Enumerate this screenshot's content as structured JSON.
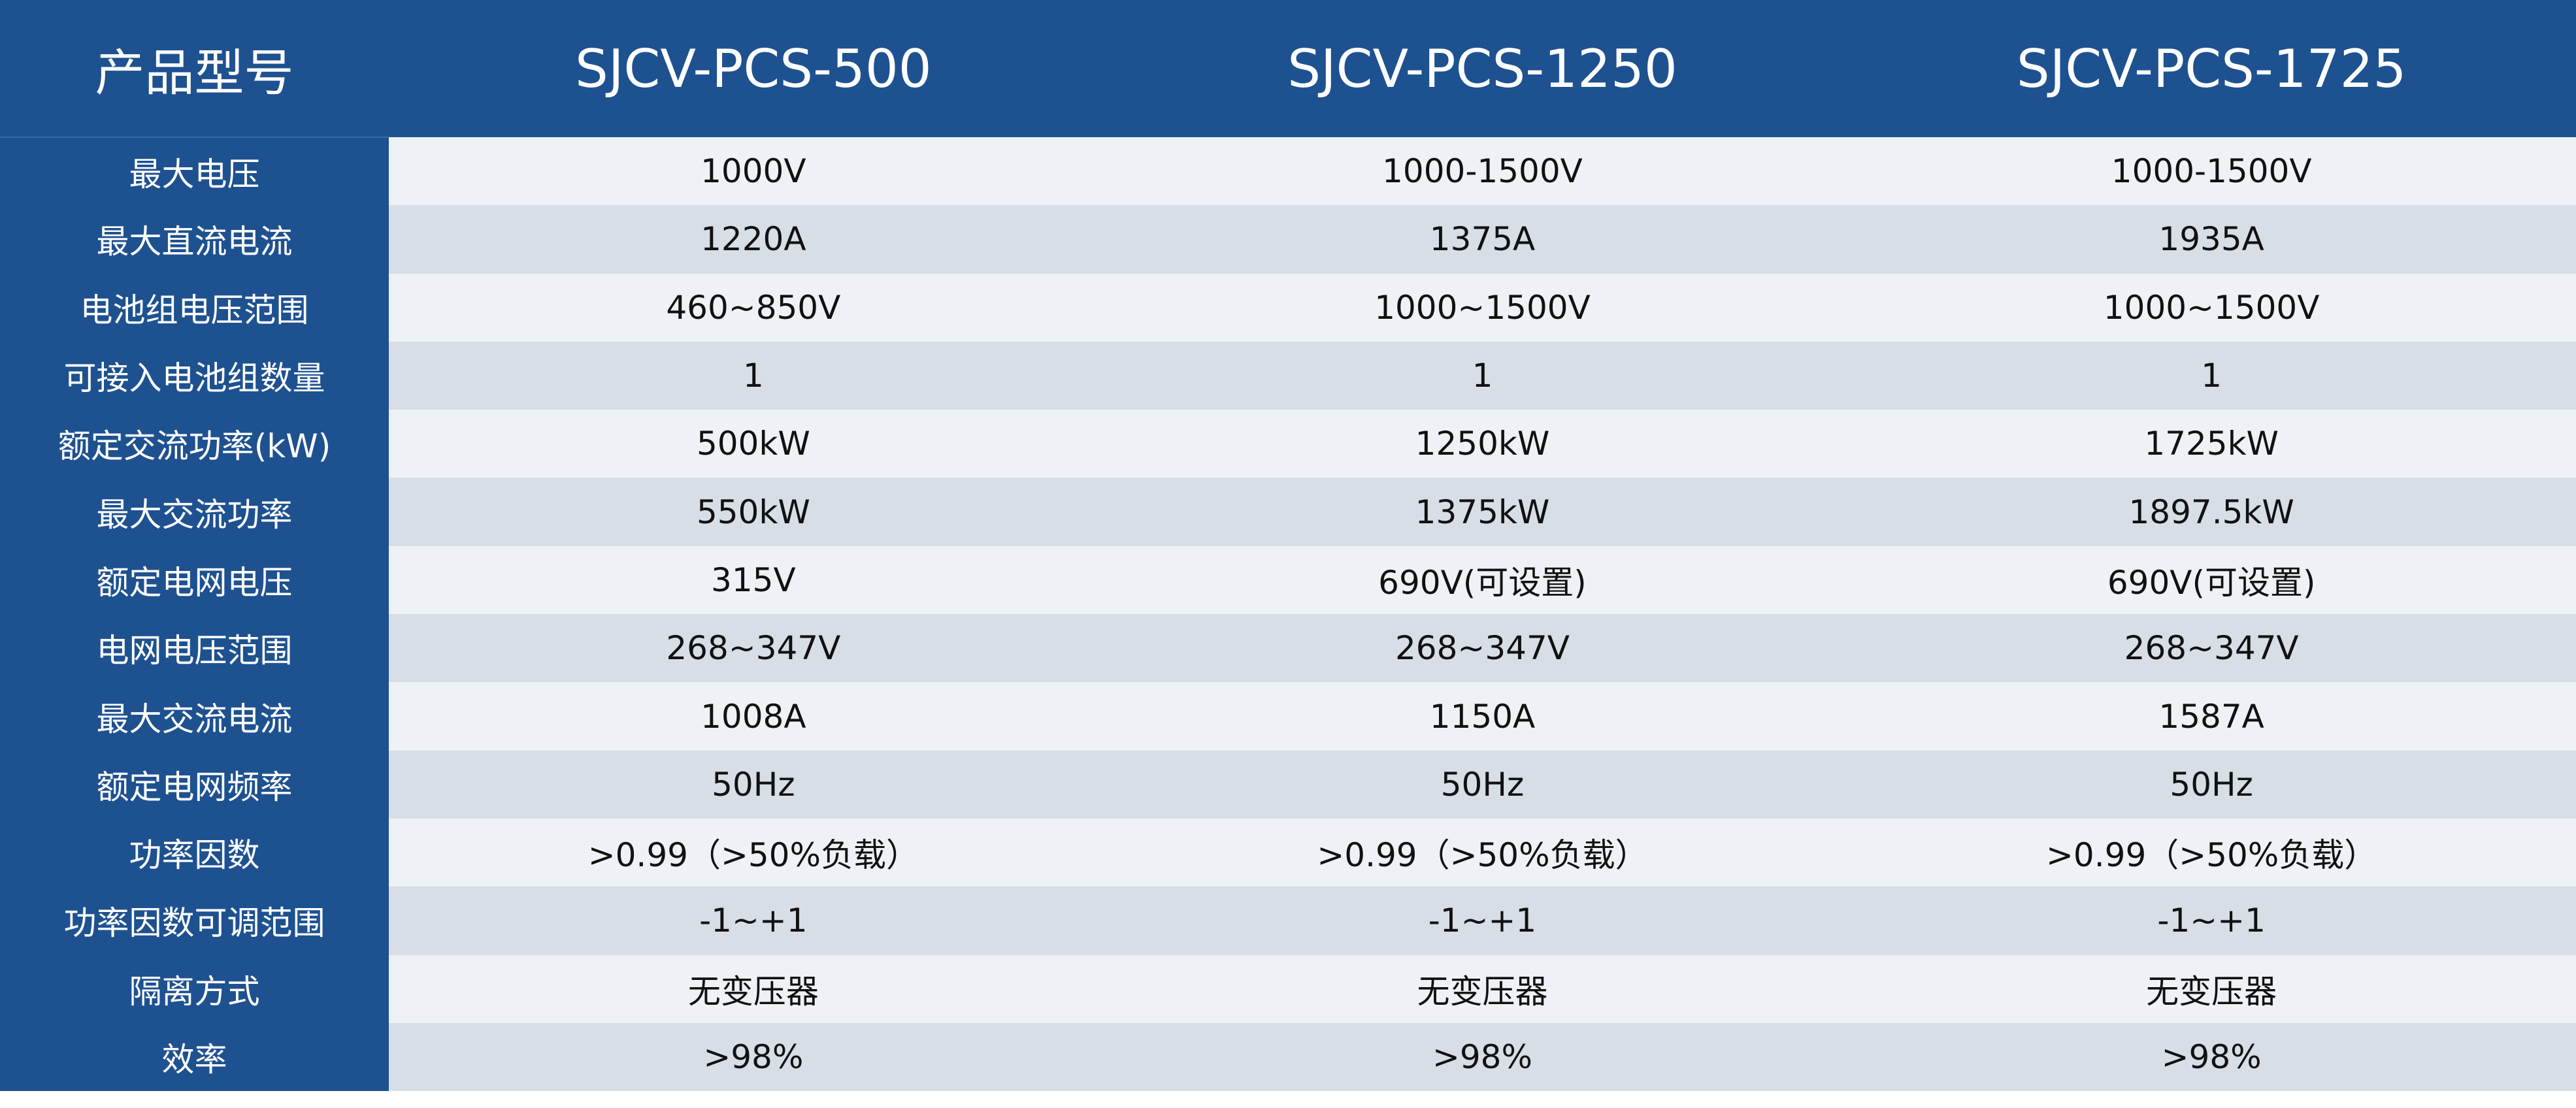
{
  "table": {
    "header": {
      "corner": "产品型号",
      "models": [
        "SJCV-PCS-500",
        "SJCV-PCS-1250",
        "SJCV-PCS-1725"
      ]
    },
    "rows": [
      {
        "label": "最大电压",
        "values": [
          "1000V",
          "1000-1500V",
          "1000-1500V"
        ]
      },
      {
        "label": "最大直流电流",
        "values": [
          "1220A",
          "1375A",
          "1935A"
        ]
      },
      {
        "label": "电池组电压范围",
        "values": [
          "460~850V",
          "1000~1500V",
          "1000~1500V"
        ]
      },
      {
        "label": "可接入电池组数量",
        "values": [
          "1",
          "1",
          "1"
        ]
      },
      {
        "label": "额定交流功率(kW)",
        "values": [
          "500kW",
          "1250kW",
          "1725kW"
        ]
      },
      {
        "label": "最大交流功率",
        "values": [
          "550kW",
          "1375kW",
          "1897.5kW"
        ]
      },
      {
        "label": "额定电网电压",
        "values": [
          "315V",
          "690V(可设置)",
          "690V(可设置)"
        ]
      },
      {
        "label": "电网电压范围",
        "values": [
          "268~347V",
          "268~347V",
          "268~347V"
        ]
      },
      {
        "label": "最大交流电流",
        "values": [
          "1008A",
          "1150A",
          "1587A"
        ]
      },
      {
        "label": "额定电网频率",
        "values": [
          "50Hz",
          "50Hz",
          "50Hz"
        ]
      },
      {
        "label": "功率因数",
        "values": [
          ">0.99（>50%负载）",
          ">0.99（>50%负载）",
          ">0.99（>50%负载）"
        ]
      },
      {
        "label": "功率因数可调范围",
        "values": [
          "-1~+1",
          "-1~+1",
          "-1~+1"
        ]
      },
      {
        "label": "隔离方式",
        "values": [
          "无变压器",
          "无变压器",
          "无变压器"
        ]
      },
      {
        "label": "效率",
        "values": [
          ">98%",
          ">98%",
          ">98%"
        ]
      }
    ]
  },
  "colors": {
    "header_bg": "#1e5190",
    "header_text": "#ffffff",
    "row_light": "#eef2f6",
    "row_dark": "#d8dee6",
    "cell_text": "#111111"
  }
}
